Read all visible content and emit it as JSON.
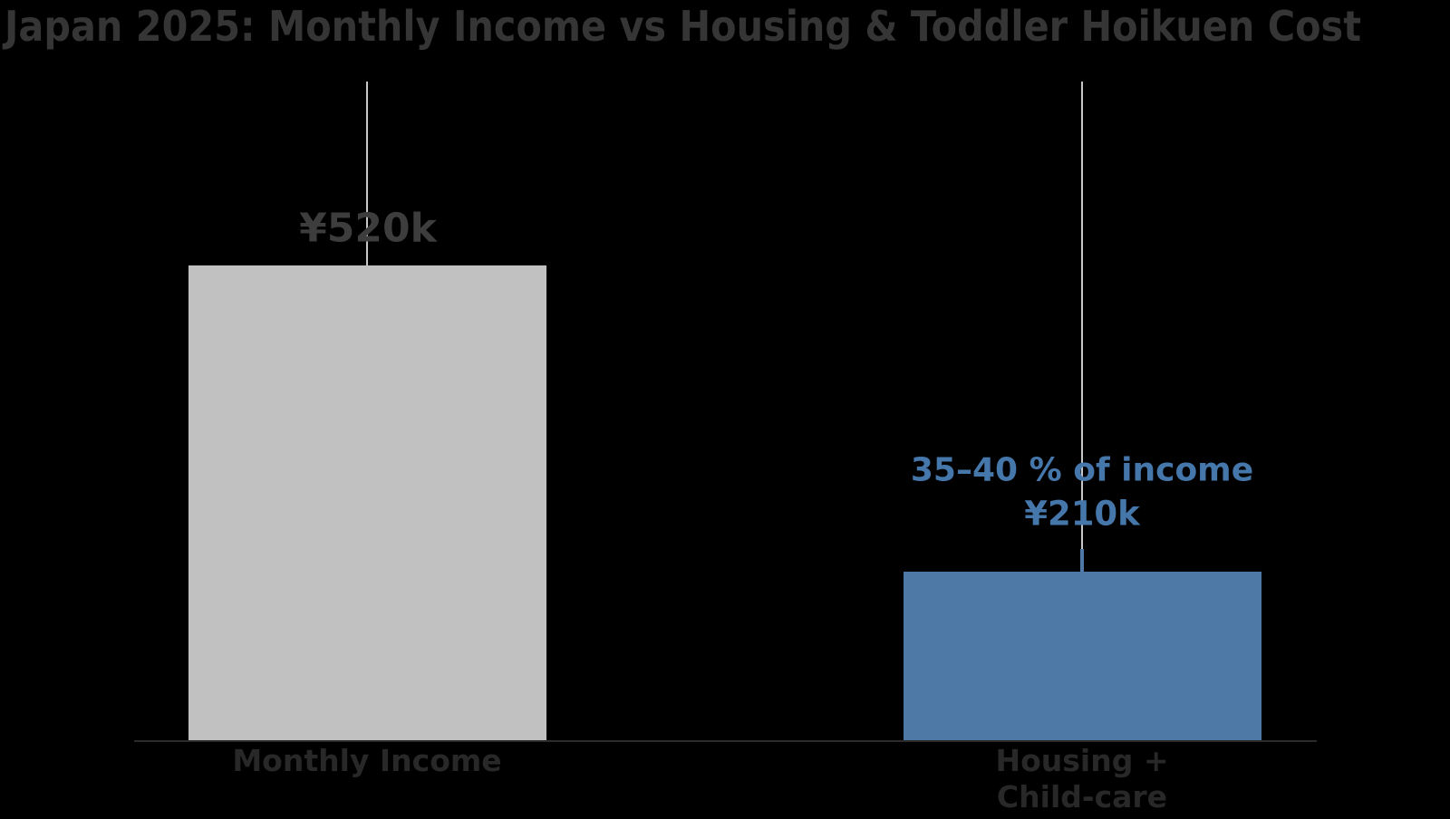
{
  "chart_data": {
    "type": "bar",
    "title": "Japan 2025: Monthly Income vs Housing & Toddler Hoikuen Cost",
    "categories": [
      "Monthly Income",
      "Housing + Child-care"
    ],
    "values_k_jpy": [
      520,
      185
    ],
    "unit": "thousand JPY per month",
    "ticks": [
      {
        "lines": [
          "Monthly Income"
        ]
      },
      {
        "lines": [
          "Housing +",
          "Child-care"
        ]
      }
    ],
    "bar_labels": {
      "income_value": "¥520k",
      "housing_range": "35–40 % of income",
      "housing_value": "¥210k"
    },
    "housing_whisker_top_k_jpy": 210,
    "ylim": [
      0,
      720
    ],
    "grid": false,
    "legend": false,
    "layout": {
      "background": "#000000",
      "center_guide_lines": true,
      "x_axis_visible": true,
      "y_axis_visible": false
    },
    "colors": {
      "income_bar": "#c1c1c1",
      "housing_bar": "#4e79a7",
      "housing_text": "#4577ab",
      "income_value_text": "#3d3d3d",
      "title_text": "#353535",
      "tick_text": "#282828",
      "guide_line": "#c7c7c7",
      "axis_line": "#2b2b2b"
    }
  }
}
